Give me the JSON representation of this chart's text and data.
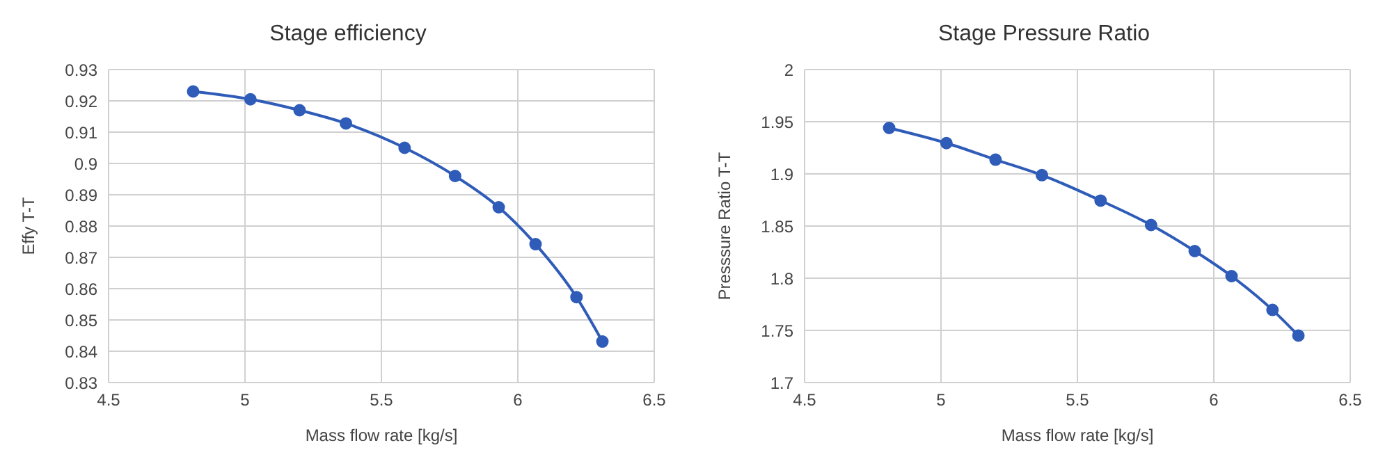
{
  "chart_data": [
    {
      "type": "line",
      "title": "Stage efficiency",
      "xlabel": "Mass flow rate [kg/s]",
      "ylabel": "Effy T-T",
      "x": [
        4.81,
        5.02,
        5.2,
        5.37,
        5.585,
        5.77,
        5.93,
        6.065,
        6.215,
        6.31
      ],
      "series": [
        {
          "color": "#2f5cb8",
          "values": [
            0.923,
            0.9205,
            0.917,
            0.9128,
            0.905,
            0.896,
            0.886,
            0.8742,
            0.8573,
            0.8431
          ]
        }
      ],
      "xlim": [
        4.5,
        6.5
      ],
      "xticks": [
        4.5,
        5,
        5.5,
        6,
        6.5
      ],
      "ylim": [
        0.83,
        0.93
      ],
      "yticks": [
        0.83,
        0.84,
        0.85,
        0.86,
        0.87,
        0.88,
        0.89,
        0.9,
        0.91,
        0.92,
        0.93
      ],
      "grid": true,
      "legend": false,
      "marker": "circle",
      "line_style": "solid"
    },
    {
      "type": "line",
      "title": "Stage Pressure Ratio",
      "xlabel": "Mass flow rate [kg/s]",
      "ylabel": "Presssure Ratio T-T",
      "x": [
        4.81,
        5.02,
        5.2,
        5.37,
        5.585,
        5.77,
        5.93,
        6.065,
        6.215,
        6.31
      ],
      "series": [
        {
          "color": "#2f5cb8",
          "values": [
            1.944,
            1.9295,
            1.9136,
            1.8988,
            1.8744,
            1.851,
            1.826,
            1.802,
            1.7696,
            1.745
          ]
        }
      ],
      "xlim": [
        4.5,
        6.5
      ],
      "xticks": [
        4.5,
        5,
        5.5,
        6,
        6.5
      ],
      "ylim": [
        1.7,
        2
      ],
      "yticks": [
        1.7,
        1.75,
        1.8,
        1.85,
        1.9,
        1.95,
        2
      ],
      "grid": true,
      "legend": false,
      "marker": "circle",
      "line_style": "solid"
    }
  ]
}
